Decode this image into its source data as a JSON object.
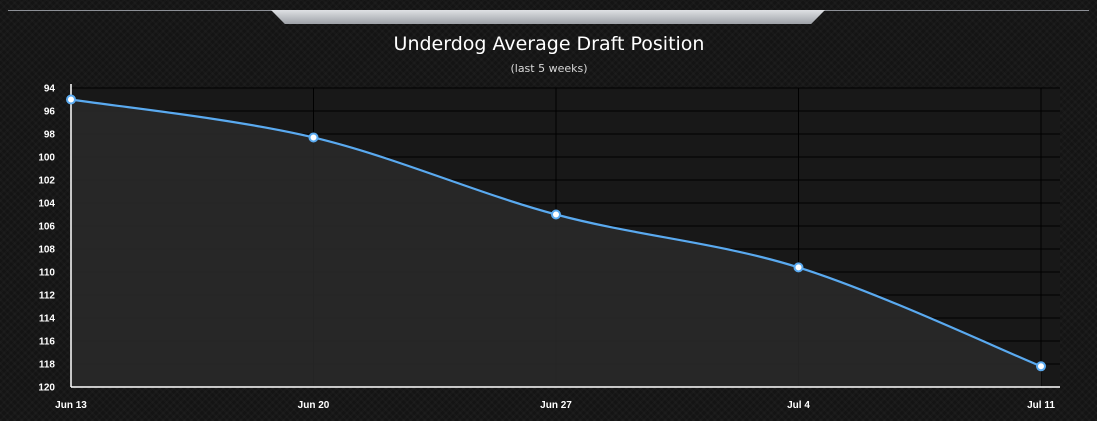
{
  "chart_data": {
    "type": "line",
    "title": "Underdog Average Draft Position",
    "subtitle": "(last 5 weeks)",
    "xlabel": "",
    "ylabel": "",
    "categories": [
      "Jun 13",
      "Jun 20",
      "Jun 27",
      "Jul 4",
      "Jul 11"
    ],
    "series": [
      {
        "values": [
          95,
          98.3,
          105,
          109.6,
          118.2
        ]
      }
    ],
    "ylim": [
      94,
      120
    ],
    "y_reversed": true,
    "y_ticks": [
      "94",
      "96",
      "98",
      "100",
      "102",
      "104",
      "106",
      "108",
      "110",
      "112",
      "114",
      "116",
      "118",
      "120"
    ],
    "grid": true,
    "legend": "none",
    "colors": {
      "line": "#5aaaf0",
      "point_fill": "#ffffff",
      "grid": "#000000",
      "axis": "#ffffff",
      "area": "#2a2a2a"
    }
  }
}
